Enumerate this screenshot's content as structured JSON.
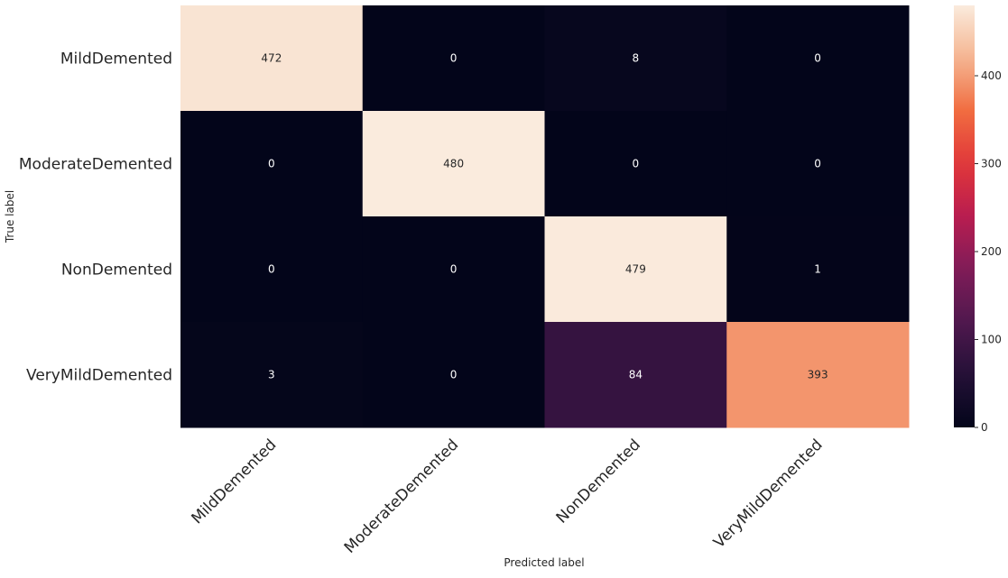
{
  "chart_data": {
    "type": "heatmap",
    "rows": [
      "MildDemented",
      "ModerateDemented",
      "NonDemented",
      "VeryMildDemented"
    ],
    "columns": [
      "MildDemented",
      "ModerateDemented",
      "NonDemented",
      "VeryMildDemented"
    ],
    "values": [
      [
        472,
        0,
        8,
        0
      ],
      [
        0,
        480,
        0,
        0
      ],
      [
        0,
        0,
        479,
        1
      ],
      [
        3,
        0,
        84,
        393
      ]
    ],
    "xlabel": "Predicted label",
    "ylabel": "True label",
    "colorbar": {
      "ticks": [
        0,
        100,
        200,
        300,
        400
      ],
      "range": [
        0,
        480
      ],
      "colormap": "rocket"
    },
    "grid": false
  }
}
